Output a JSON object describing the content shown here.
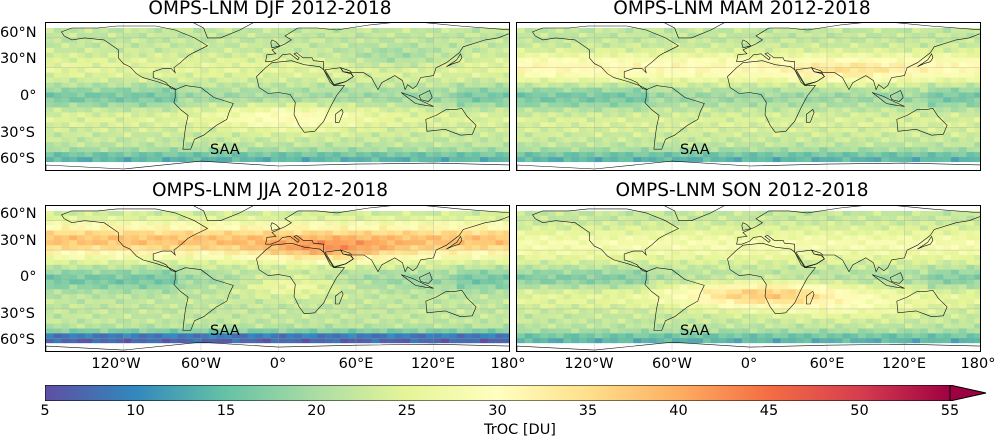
{
  "panels": [
    {
      "title": "OMPS-LNM DJF 2012-2018",
      "season": "DJF",
      "annotation": "SAA"
    },
    {
      "title": "OMPS-LNM MAM 2012-2018",
      "season": "MAM",
      "annotation": "SAA"
    },
    {
      "title": "OMPS-LNM JJA 2012-2018",
      "season": "JJA",
      "annotation": "SAA"
    },
    {
      "title": "OMPS-LNM SON 2012-2018",
      "season": "SON",
      "annotation": "SAA"
    }
  ],
  "lat_ticks": [
    "60°N",
    "30°N",
    "0°",
    "30°S",
    "60°S"
  ],
  "lon_ticks": [
    "120°W",
    "60°W",
    "0°",
    "60°E",
    "120°E",
    "180°"
  ],
  "colorbar": {
    "label": "TrOC [DU]",
    "ticks": [
      "5",
      "10",
      "15",
      "20",
      "25",
      "30",
      "35",
      "40",
      "45",
      "50",
      "55"
    ],
    "min": 5,
    "max": 55,
    "colormap": [
      "#5e4fa2",
      "#3288bd",
      "#66c2a5",
      "#abdda4",
      "#e6f598",
      "#ffffbf",
      "#fee08b",
      "#fdae61",
      "#f46d43",
      "#d53e4f",
      "#9e0142"
    ]
  }
}
